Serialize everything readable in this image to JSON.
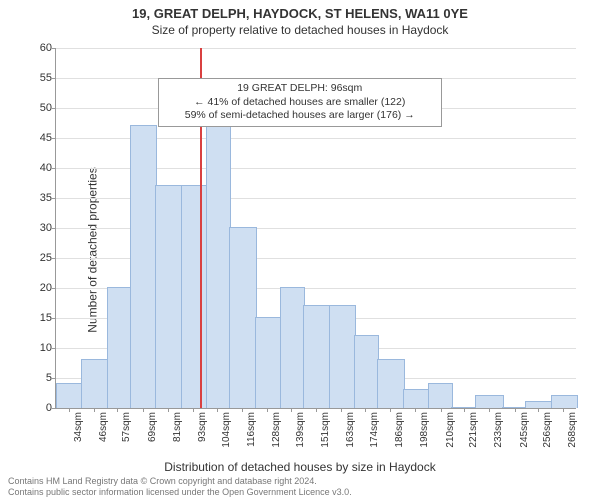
{
  "title_line1": "19, GREAT DELPH, HAYDOCK, ST HELENS, WA11 0YE",
  "title_line2": "Size of property relative to detached houses in Haydock",
  "ylabel": "Number of detached properties",
  "xlabel": "Distribution of detached houses by size in Haydock",
  "chart": {
    "type": "histogram",
    "ylim": [
      0,
      60
    ],
    "ytick_step": 5,
    "yticks": [
      0,
      5,
      10,
      15,
      20,
      25,
      30,
      35,
      40,
      45,
      50,
      55,
      60
    ],
    "xlim": [
      28,
      274
    ],
    "xticks": [
      34,
      46,
      57,
      69,
      81,
      93,
      104,
      116,
      128,
      139,
      151,
      163,
      174,
      186,
      198,
      210,
      221,
      233,
      245,
      256,
      268
    ],
    "xtick_labels": [
      "34sqm",
      "46sqm",
      "57sqm",
      "69sqm",
      "81sqm",
      "93sqm",
      "104sqm",
      "116sqm",
      "128sqm",
      "139sqm",
      "151sqm",
      "163sqm",
      "174sqm",
      "186sqm",
      "198sqm",
      "210sqm",
      "221sqm",
      "233sqm",
      "245sqm",
      "256sqm",
      "268sqm"
    ],
    "bars": [
      {
        "x0": 28,
        "x1": 40,
        "v": 4
      },
      {
        "x0": 40,
        "x1": 52,
        "v": 8
      },
      {
        "x0": 52,
        "x1": 63,
        "v": 20
      },
      {
        "x0": 63,
        "x1": 75,
        "v": 47
      },
      {
        "x0": 75,
        "x1": 87,
        "v": 37
      },
      {
        "x0": 87,
        "x1": 99,
        "v": 37
      },
      {
        "x0": 99,
        "x1": 110,
        "v": 47
      },
      {
        "x0": 110,
        "x1": 122,
        "v": 30
      },
      {
        "x0": 122,
        "x1": 134,
        "v": 15
      },
      {
        "x0": 134,
        "x1": 145,
        "v": 20
      },
      {
        "x0": 145,
        "x1": 157,
        "v": 17
      },
      {
        "x0": 157,
        "x1": 169,
        "v": 17
      },
      {
        "x0": 169,
        "x1": 180,
        "v": 12
      },
      {
        "x0": 180,
        "x1": 192,
        "v": 8
      },
      {
        "x0": 192,
        "x1": 204,
        "v": 3
      },
      {
        "x0": 204,
        "x1": 215,
        "v": 4
      },
      {
        "x0": 215,
        "x1": 226,
        "v": 0
      },
      {
        "x0": 226,
        "x1": 239,
        "v": 2
      },
      {
        "x0": 239,
        "x1": 250,
        "v": 0
      },
      {
        "x0": 250,
        "x1": 262,
        "v": 1
      },
      {
        "x0": 262,
        "x1": 274,
        "v": 2
      }
    ],
    "bar_fill": "#cfdff2",
    "bar_border": "#9ab8dd",
    "grid_color": "#e0e0e0",
    "axis_color": "#999999",
    "background_color": "#ffffff",
    "reference_line": {
      "x": 96,
      "color": "#d94040"
    },
    "annotation": {
      "line1": "19 GREAT DELPH: 96sqm",
      "line2": "← 41% of detached houses are smaller (122)",
      "line3": "59% of semi-detached houses are larger (176) →",
      "x_center": 140,
      "y_top": 55
    },
    "title_fontsize": 13,
    "label_fontsize": 12,
    "tick_fontsize": 10
  },
  "footer_line1": "Contains HM Land Registry data © Crown copyright and database right 2024.",
  "footer_line2": "Contains public sector information licensed under the Open Government Licence v3.0."
}
